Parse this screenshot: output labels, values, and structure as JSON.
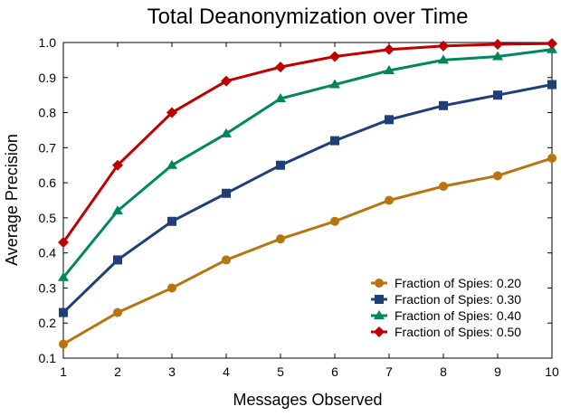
{
  "chart_data": {
    "type": "line",
    "title": "Total Deanonymization over Time",
    "xlabel": "Messages Observed",
    "ylabel": "Average Precision",
    "xlim": [
      1,
      10
    ],
    "ylim": [
      0.1,
      1.0
    ],
    "x": [
      1,
      2,
      3,
      4,
      5,
      6,
      7,
      8,
      9,
      10
    ],
    "xticks": [
      "1",
      "2",
      "3",
      "4",
      "5",
      "6",
      "7",
      "8",
      "9",
      "10"
    ],
    "yticks": [
      "0.1",
      "0.2",
      "0.3",
      "0.4",
      "0.5",
      "0.6",
      "0.7",
      "0.8",
      "0.9",
      "1.0"
    ],
    "grid": false,
    "legend_position": "bottom-right",
    "series": [
      {
        "name": "Fraction of Spies: 0.20",
        "color": "#b8740f",
        "marker": "circle",
        "values": [
          0.14,
          0.23,
          0.3,
          0.38,
          0.44,
          0.49,
          0.55,
          0.59,
          0.62,
          0.67
        ]
      },
      {
        "name": "Fraction of Spies: 0.30",
        "color": "#1f3f7a",
        "marker": "square",
        "values": [
          0.23,
          0.38,
          0.49,
          0.57,
          0.65,
          0.72,
          0.78,
          0.82,
          0.85,
          0.88
        ]
      },
      {
        "name": "Fraction of Spies: 0.40",
        "color": "#00875a",
        "marker": "triangle",
        "values": [
          0.33,
          0.52,
          0.65,
          0.74,
          0.84,
          0.88,
          0.92,
          0.95,
          0.96,
          0.98
        ]
      },
      {
        "name": "Fraction of Spies: 0.50",
        "color": "#c00000",
        "marker": "diamond",
        "values": [
          0.43,
          0.65,
          0.8,
          0.89,
          0.93,
          0.96,
          0.98,
          0.99,
          0.995,
          0.997
        ]
      }
    ]
  }
}
